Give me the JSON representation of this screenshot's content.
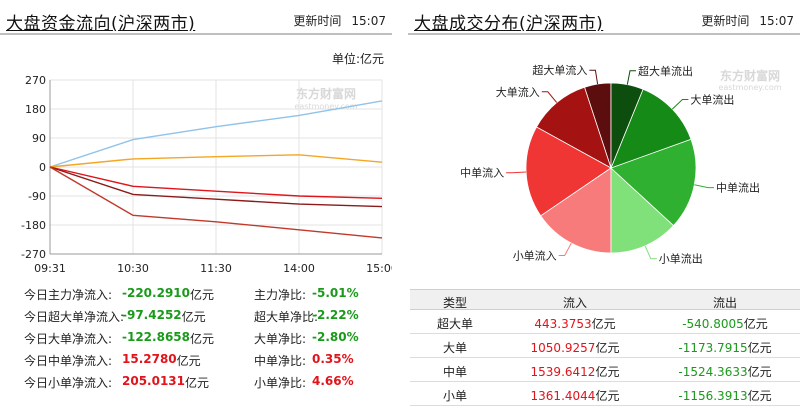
{
  "left": {
    "title": "大盘资金流向(沪深两市)",
    "time_label": "更新时间",
    "time": "15:07",
    "unit": "单位:亿元",
    "stats": [
      {
        "label": "今日主力净流入:",
        "value": "-220.2910",
        "unit": "亿元",
        "ratio_label": "主力净比:",
        "ratio": "-5.01%",
        "dir": "dn",
        "ratio_dir": "dn"
      },
      {
        "label": "今日超大单净流入:",
        "value": "-97.4252",
        "unit": "亿元",
        "ratio_label": "超大单净比:",
        "ratio": "-2.22%",
        "dir": "dn",
        "ratio_dir": "dn"
      },
      {
        "label": "今日大单净流入:",
        "value": "-122.8658",
        "unit": "亿元",
        "ratio_label": "大单净比:",
        "ratio": "-2.80%",
        "dir": "dn",
        "ratio_dir": "dn"
      },
      {
        "label": "今日中单净流入:",
        "value": "15.2780",
        "unit": "亿元",
        "ratio_label": "中单净比:",
        "ratio": "0.35%",
        "dir": "up",
        "ratio_dir": "up"
      },
      {
        "label": "今日小单净流入:",
        "value": "205.0131",
        "unit": "亿元",
        "ratio_label": "小单净比:",
        "ratio": "4.66%",
        "dir": "up",
        "ratio_dir": "up"
      }
    ]
  },
  "right": {
    "title": "大盘成交分布(沪深两市)",
    "time_label": "更新时间",
    "time": "15:07",
    "table": {
      "headers": [
        "类型",
        "流入",
        "流出"
      ],
      "rows": [
        {
          "type": "超大单",
          "in": "443.3753",
          "out": "-540.8005",
          "unit": "亿元"
        },
        {
          "type": "大单",
          "in": "1050.9257",
          "out": "-1173.7915",
          "unit": "亿元"
        },
        {
          "type": "中单",
          "in": "1539.6412",
          "out": "-1524.3633",
          "unit": "亿元"
        },
        {
          "type": "小单",
          "in": "1361.4044",
          "out": "-1156.3913",
          "unit": "亿元"
        }
      ]
    }
  },
  "colors": {
    "super_large": "#e0141a",
    "large": "#8b1a1a",
    "main": "#c0392b",
    "medium": "#f5a623",
    "small": "#8fc3ea",
    "watermark": "#d8d8d8",
    "in_text": "#e0141a",
    "out_text": "#1a9a1a"
  },
  "watermark": {
    "cn": "东方财富网",
    "en": "eastmoney.com"
  },
  "chart_data": [
    {
      "type": "line",
      "x": [
        "09:31",
        "10:30",
        "11:30",
        "14:00",
        "15:00"
      ],
      "ylim": [
        -270,
        270
      ],
      "yticks": [
        270,
        180,
        90,
        0,
        -90,
        -180,
        -270
      ],
      "series": [
        {
          "key": "small",
          "values": [
            0,
            85,
            125,
            160,
            205
          ]
        },
        {
          "key": "medium",
          "values": [
            0,
            25,
            32,
            38,
            15
          ]
        },
        {
          "key": "super_large",
          "values": [
            0,
            -60,
            -75,
            -90,
            -97
          ]
        },
        {
          "key": "large",
          "values": [
            0,
            -85,
            -100,
            -115,
            -123
          ]
        },
        {
          "key": "main",
          "values": [
            0,
            -150,
            -170,
            -195,
            -220
          ]
        }
      ]
    },
    {
      "type": "pie",
      "labels": [
        "超大单流入",
        "大单流入",
        "中单流入",
        "小单流入",
        "小单流出",
        "中单流出",
        "大单流出",
        "超大单流出"
      ],
      "values": [
        443.3753,
        1050.9257,
        1539.6412,
        1361.4044,
        1156.3913,
        1524.3633,
        1173.7915,
        540.8005
      ],
      "colors": [
        "#5c0e0e",
        "#a51212",
        "#f03535",
        "#f87b7b",
        "#80e07a",
        "#30b030",
        "#168a16",
        "#0d4d0d"
      ]
    }
  ]
}
